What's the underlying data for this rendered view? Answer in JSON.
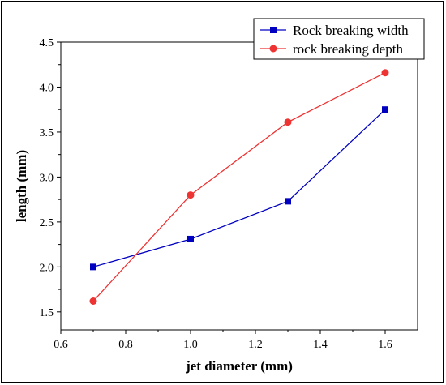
{
  "chart_data": {
    "type": "line",
    "title": "",
    "xlabel": "jet diameter (mm)",
    "ylabel": "length (mm)",
    "xlim": [
      0.6,
      1.7
    ],
    "ylim": [
      1.3,
      4.5
    ],
    "xticks": [
      0.6,
      0.8,
      1.0,
      1.2,
      1.4,
      1.6
    ],
    "yticks": [
      1.5,
      2.0,
      2.5,
      3.0,
      3.5,
      4.0,
      4.5
    ],
    "xtick_labels": [
      "0.6",
      "0.8",
      "1.0",
      "1.2",
      "1.4",
      "1.6"
    ],
    "ytick_labels": [
      "1.5",
      "2.0",
      "2.5",
      "3.0",
      "3.5",
      "4.0",
      "4.5"
    ],
    "grid": false,
    "legend_position": "top-right",
    "series": [
      {
        "name": "Rock breaking width",
        "color": "#0000c0",
        "marker": "square",
        "x": [
          0.7,
          1.0,
          1.3,
          1.6
        ],
        "y": [
          2.0,
          2.31,
          2.73,
          3.75
        ]
      },
      {
        "name": "rock breaking depth",
        "color": "#ee3333",
        "marker": "circle",
        "x": [
          0.7,
          1.0,
          1.3,
          1.6
        ],
        "y": [
          1.62,
          2.8,
          3.61,
          4.16
        ]
      }
    ]
  }
}
